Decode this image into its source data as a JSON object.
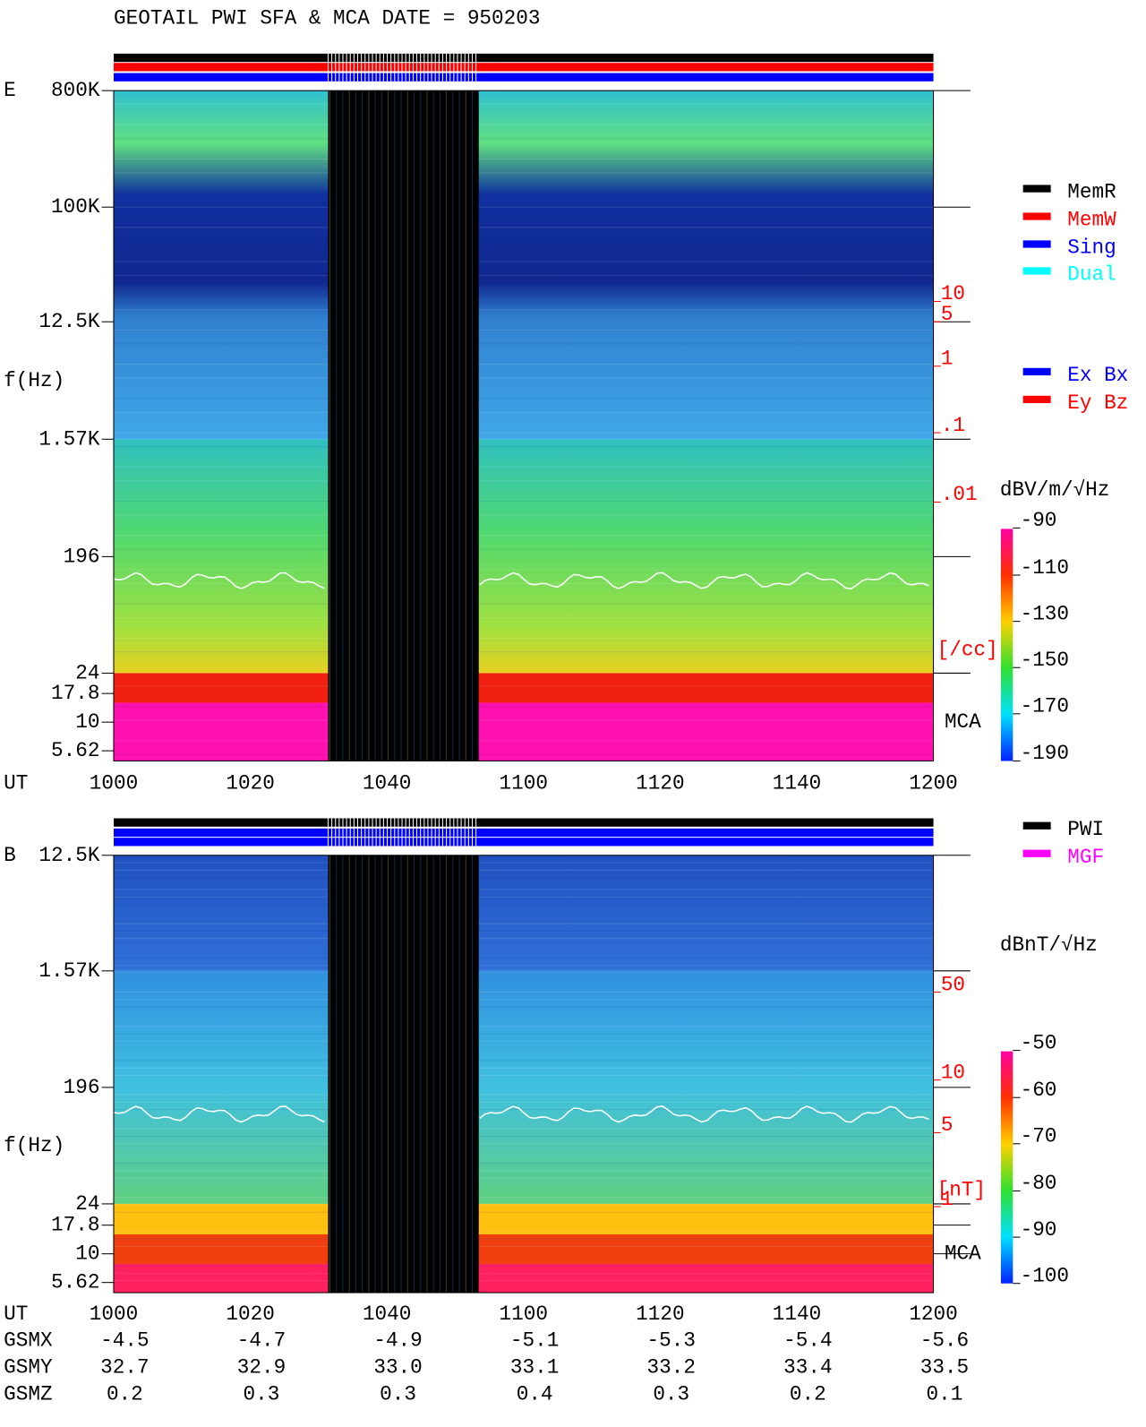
{
  "title": "GEOTAIL  PWI SFA & MCA   DATE = 950203",
  "panels": [
    {
      "label": "E",
      "ylabel": "f(Hz)",
      "xlabel": "UT",
      "freq_ticks": [
        "800K",
        "100K",
        "12.5K",
        "1.57K",
        "196",
        "24",
        "17.8",
        "10",
        "5.62"
      ],
      "time_ticks": [
        "1000",
        "1020",
        "1040",
        "1100",
        "1120",
        "1140",
        "1200"
      ],
      "density_ticks": [
        "10",
        "5",
        "1",
        ".1",
        ".01"
      ],
      "density_unit": "[/cc]",
      "mca": "MCA",
      "unit": "dBV/m/√Hz",
      "colorbar_ticks": [
        "-90",
        "-110",
        "-130",
        "-150",
        "-170",
        "-190"
      ],
      "mode_legend": [
        {
          "name": "MemR",
          "color": "#000000"
        },
        {
          "name": "MemW",
          "color": "#ff0000"
        },
        {
          "name": "Sing",
          "color": "#0000ff"
        },
        {
          "name": "Dual",
          "color": "#00ffff"
        }
      ],
      "component_legend": [
        {
          "name": "Ex Bx",
          "color": "#0000ff"
        },
        {
          "name": "Ey Bz",
          "color": "#ff0000"
        }
      ]
    },
    {
      "label": "B",
      "ylabel": "f(Hz)",
      "xlabel": "UT",
      "freq_ticks": [
        "12.5K",
        "1.57K",
        "196",
        "24",
        "17.8",
        "10",
        "5.62"
      ],
      "time_ticks": [
        "1000",
        "1020",
        "1040",
        "1100",
        "1120",
        "1140",
        "1200"
      ],
      "density_ticks": [
        "50",
        "10",
        "5",
        "1"
      ],
      "density_unit": "[nT]",
      "mca": "MCA",
      "unit": "dBnT/√Hz",
      "colorbar_ticks": [
        "-50",
        "-60",
        "-70",
        "-80",
        "-90",
        "-100"
      ],
      "mode_legend": [
        {
          "name": "PWI",
          "color": "#000000"
        },
        {
          "name": "MGF",
          "color": "#ff00ff"
        }
      ],
      "component_legend": []
    }
  ],
  "ephemeris": [
    {
      "name": "GSMX",
      "values": [
        "-4.5",
        "-4.7",
        "-4.9",
        "-5.1",
        "-5.3",
        "-5.4",
        "-5.6"
      ]
    },
    {
      "name": "GSMY",
      "values": [
        "32.7",
        "32.9",
        "33.0",
        "33.1",
        "33.2",
        "33.4",
        "33.5"
      ]
    },
    {
      "name": "GSMZ",
      "values": [
        "0.2",
        "0.3",
        "0.3",
        "0.4",
        "0.3",
        "0.2",
        "0.1"
      ]
    }
  ]
}
